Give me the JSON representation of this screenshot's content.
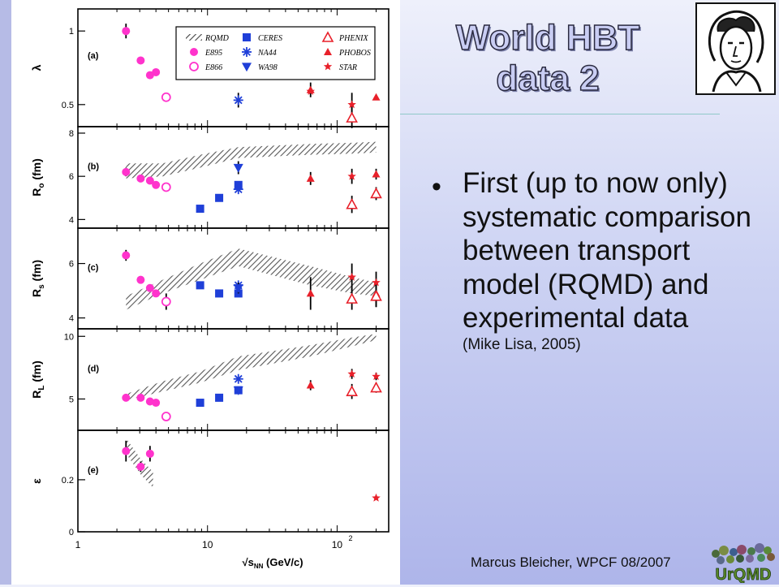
{
  "slide": {
    "title_line1": "World HBT",
    "title_line2": "data 2",
    "bullet_symbol": "•",
    "bullet_text": "First (up to now only) systematic comparison between transport model (RQMD) and experimental data",
    "citation": "(Mike Lisa, 2005)",
    "footer": "Marcus Bleicher, WPCF 08/2007",
    "logo_text": "UrQMD"
  },
  "colors": {
    "magenta": "#ff33cc",
    "blue": "#1f3fd8",
    "red": "#e8202a",
    "band": "#555555",
    "background_top": "#eef0fb",
    "background_bottom": "#aeb5ea"
  },
  "chart_data": {
    "type": "scatter",
    "x_scale": "log",
    "xlim": [
      1,
      250
    ],
    "x_ticks": [
      "1",
      "10",
      "10",
      "2"
    ],
    "xlabel_main": "√s",
    "xlabel_sub": "NN",
    "xlabel_unit": "(GeV/c)",
    "legend": [
      {
        "label": "RQMD",
        "marker": "hatch-band",
        "color": "#555555"
      },
      {
        "label": "E895",
        "marker": "filled-circle",
        "color": "#ff33cc"
      },
      {
        "label": "E866",
        "marker": "open-circle",
        "color": "#ff33cc"
      },
      {
        "label": "CERES",
        "marker": "filled-square",
        "color": "#1f3fd8"
      },
      {
        "label": "NA44",
        "marker": "asterisk",
        "color": "#1f3fd8"
      },
      {
        "label": "WA98",
        "marker": "open-triangle-down",
        "color": "#1f3fd8"
      },
      {
        "label": "PHENIX",
        "marker": "open-triangle",
        "color": "#e8202a"
      },
      {
        "label": "PHOBOS",
        "marker": "filled-triangle",
        "color": "#e8202a"
      },
      {
        "label": "STAR",
        "marker": "star",
        "color": "#e8202a"
      }
    ],
    "panels": [
      {
        "tag": "(a)",
        "ylabel": "λ",
        "ylabel_sub": "",
        "ylabel_unit": "",
        "ylim": [
          0.35,
          1.15
        ],
        "yticks": [
          0.5,
          1
        ],
        "ytick_labels": [
          "0.5",
          "1"
        ],
        "band": null,
        "points": [
          {
            "series": "E895",
            "x": 2.35,
            "y": 1.0,
            "err": 0.05
          },
          {
            "series": "E895",
            "x": 3.05,
            "y": 0.8
          },
          {
            "series": "E895",
            "x": 3.6,
            "y": 0.7
          },
          {
            "series": "E895",
            "x": 4.0,
            "y": 0.72
          },
          {
            "series": "E866",
            "x": 4.8,
            "y": 0.55
          },
          {
            "series": "NA44",
            "x": 17.3,
            "y": 0.53,
            "err": 0.05
          },
          {
            "series": "PHOBOS",
            "x": 62.4,
            "y": 0.6,
            "err": 0.05
          },
          {
            "series": "STAR",
            "x": 62.4,
            "y": 0.59
          },
          {
            "series": "STAR",
            "x": 130,
            "y": 0.5,
            "err": 0.08
          },
          {
            "series": "PHENIX",
            "x": 130,
            "y": 0.41,
            "err": 0.07
          },
          {
            "series": "PHOBOS",
            "x": 200,
            "y": 0.55
          }
        ]
      },
      {
        "tag": "(b)",
        "ylabel": "R",
        "ylabel_sub": "o",
        "ylabel_unit": "(fm)",
        "ylim": [
          3.6,
          8.3
        ],
        "yticks": [
          4,
          6,
          8
        ],
        "ytick_labels": [
          "4",
          "6",
          "8"
        ],
        "band": {
          "x": [
            2.35,
            4.5,
            8.77,
            17.3,
            62.4,
            130,
            200
          ],
          "low": [
            5.9,
            6.0,
            6.4,
            6.85,
            7.0,
            7.05,
            7.1
          ],
          "high": [
            6.6,
            6.6,
            7.0,
            7.35,
            7.5,
            7.55,
            7.6
          ]
        },
        "points": [
          {
            "series": "E895",
            "x": 2.35,
            "y": 6.2,
            "err": 0.2
          },
          {
            "series": "E895",
            "x": 3.05,
            "y": 5.9
          },
          {
            "series": "E895",
            "x": 3.6,
            "y": 5.8
          },
          {
            "series": "E895",
            "x": 4.0,
            "y": 5.6
          },
          {
            "series": "E866",
            "x": 4.8,
            "y": 5.5
          },
          {
            "series": "CERES",
            "x": 8.77,
            "y": 4.5
          },
          {
            "series": "CERES",
            "x": 12.3,
            "y": 5.0
          },
          {
            "series": "CERES",
            "x": 17.3,
            "y": 5.6
          },
          {
            "series": "NA44",
            "x": 17.3,
            "y": 5.4
          },
          {
            "series": "WA98",
            "x": 17.3,
            "y": 6.4,
            "err": 0.3
          },
          {
            "series": "PHOBOS",
            "x": 62.4,
            "y": 5.9,
            "err": 0.3
          },
          {
            "series": "STAR",
            "x": 130,
            "y": 6.0,
            "err": 0.35
          },
          {
            "series": "PHENIX",
            "x": 130,
            "y": 4.7,
            "err": 0.4
          },
          {
            "series": "PHOBOS",
            "x": 200,
            "y": 6.1,
            "err": 0.25
          },
          {
            "series": "PHENIX",
            "x": 200,
            "y": 5.2,
            "err": 0.3
          }
        ]
      },
      {
        "tag": "(c)",
        "ylabel": "R",
        "ylabel_sub": "s",
        "ylabel_unit": "(fm)",
        "ylim": [
          3.6,
          7.3
        ],
        "yticks": [
          4,
          6
        ],
        "ytick_labels": [
          "4",
          "6"
        ],
        "band": {
          "x": [
            2.35,
            4.5,
            8.77,
            17.3,
            62.4,
            130,
            200
          ],
          "low": [
            4.3,
            4.9,
            5.4,
            5.9,
            5.2,
            4.9,
            4.8
          ],
          "high": [
            4.8,
            5.4,
            6.0,
            6.55,
            5.9,
            5.5,
            5.3
          ]
        },
        "points": [
          {
            "series": "E895",
            "x": 2.35,
            "y": 6.3,
            "err": 0.2
          },
          {
            "series": "E895",
            "x": 3.05,
            "y": 5.4
          },
          {
            "series": "E895",
            "x": 3.6,
            "y": 5.1
          },
          {
            "series": "E895",
            "x": 4.0,
            "y": 4.9
          },
          {
            "series": "E866",
            "x": 4.8,
            "y": 4.6,
            "err": 0.3
          },
          {
            "series": "CERES",
            "x": 8.77,
            "y": 5.2
          },
          {
            "series": "CERES",
            "x": 12.3,
            "y": 4.9
          },
          {
            "series": "CERES",
            "x": 17.3,
            "y": 4.9
          },
          {
            "series": "NA44",
            "x": 17.3,
            "y": 5.2
          },
          {
            "series": "WA98",
            "x": 17.3,
            "y": 5.1,
            "err": 0.2
          },
          {
            "series": "PHOBOS",
            "x": 62.4,
            "y": 4.9,
            "err": 0.6
          },
          {
            "series": "STAR",
            "x": 130,
            "y": 5.5,
            "err": 0.5
          },
          {
            "series": "PHENIX",
            "x": 130,
            "y": 4.7,
            "err": 0.4
          },
          {
            "series": "PHOBOS",
            "x": 200,
            "y": 4.9,
            "err": 0.5
          },
          {
            "series": "STAR",
            "x": 200,
            "y": 5.3,
            "err": 0.4
          },
          {
            "series": "PHENIX",
            "x": 200,
            "y": 4.8,
            "err": 0.4
          }
        ]
      },
      {
        "tag": "(d)",
        "ylabel": "R",
        "ylabel_sub": "L",
        "ylabel_unit": "(fm)",
        "ylim": [
          2.5,
          10.6
        ],
        "yticks": [
          5,
          10
        ],
        "ytick_labels": [
          "5",
          "10"
        ],
        "band": {
          "x": [
            2.35,
            4.5,
            8.77,
            17.3,
            62.4,
            130,
            200
          ],
          "low": [
            4.9,
            5.6,
            6.3,
            7.3,
            8.4,
            9.2,
            9.7
          ],
          "high": [
            5.4,
            6.4,
            7.2,
            8.4,
            9.3,
            9.9,
            10.2
          ]
        },
        "points": [
          {
            "series": "E895",
            "x": 2.35,
            "y": 5.1
          },
          {
            "series": "E895",
            "x": 3.05,
            "y": 5.1
          },
          {
            "series": "E895",
            "x": 3.6,
            "y": 4.8
          },
          {
            "series": "E895",
            "x": 4.0,
            "y": 4.7
          },
          {
            "series": "E866",
            "x": 4.8,
            "y": 3.6
          },
          {
            "series": "CERES",
            "x": 8.77,
            "y": 4.7
          },
          {
            "series": "CERES",
            "x": 12.3,
            "y": 5.1
          },
          {
            "series": "CERES",
            "x": 17.3,
            "y": 5.7
          },
          {
            "series": "NA44",
            "x": 17.3,
            "y": 6.6
          },
          {
            "series": "WA98",
            "x": 17.3,
            "y": 5.7,
            "err": 0.3
          },
          {
            "series": "PHOBOS",
            "x": 62.4,
            "y": 6.1,
            "err": 0.4
          },
          {
            "series": "STAR",
            "x": 130,
            "y": 7.0,
            "err": 0.4
          },
          {
            "series": "PHENIX",
            "x": 130,
            "y": 5.6,
            "err": 0.6
          },
          {
            "series": "STAR",
            "x": 200,
            "y": 6.8,
            "err": 0.3
          },
          {
            "series": "PHENIX",
            "x": 200,
            "y": 5.9,
            "err": 0.4
          }
        ]
      },
      {
        "tag": "(e)",
        "ylabel": "ε",
        "ylabel_sub": "",
        "ylabel_unit": "",
        "ylim": [
          0,
          0.39
        ],
        "yticks": [
          0,
          0.2
        ],
        "ytick_labels": [
          "0",
          "0.2"
        ],
        "band": {
          "x": [
            2.35,
            3.05,
            3.8
          ],
          "low": [
            0.3,
            0.22,
            0.17
          ],
          "high": [
            0.36,
            0.28,
            0.23
          ]
        },
        "points": [
          {
            "series": "E895",
            "x": 2.35,
            "y": 0.31,
            "err": 0.04
          },
          {
            "series": "E895",
            "x": 3.05,
            "y": 0.25,
            "err": 0.02
          },
          {
            "series": "E895",
            "x": 3.6,
            "y": 0.3,
            "err": 0.03
          },
          {
            "series": "STAR",
            "x": 200,
            "y": 0.13
          }
        ]
      }
    ]
  }
}
